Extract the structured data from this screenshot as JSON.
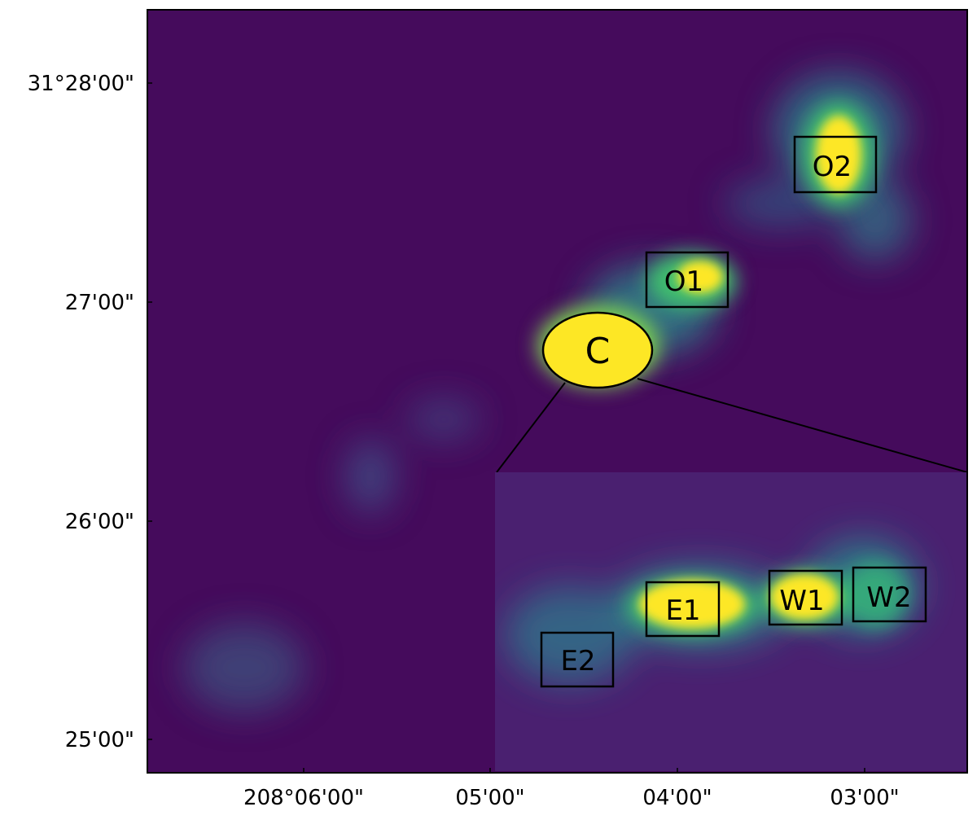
{
  "axes": {
    "ra_ticks": [
      "208°06'00\"",
      "05'00\"",
      "04'00\"",
      "03'00\""
    ],
    "dec_ticks": [
      "31°28'00\"",
      "27'00\"",
      "26'00\"",
      "25'00\""
    ]
  },
  "labels": {
    "core": "C",
    "regions": [
      "O1",
      "O2",
      "E1",
      "E2",
      "W1",
      "W2"
    ]
  },
  "colors": {
    "background": "#450B5C",
    "inset_background": "#4A2070",
    "teal": "#2A8A8C",
    "green": "#3FBF6E",
    "yellow": "#FDE725",
    "outline": "#000000"
  }
}
